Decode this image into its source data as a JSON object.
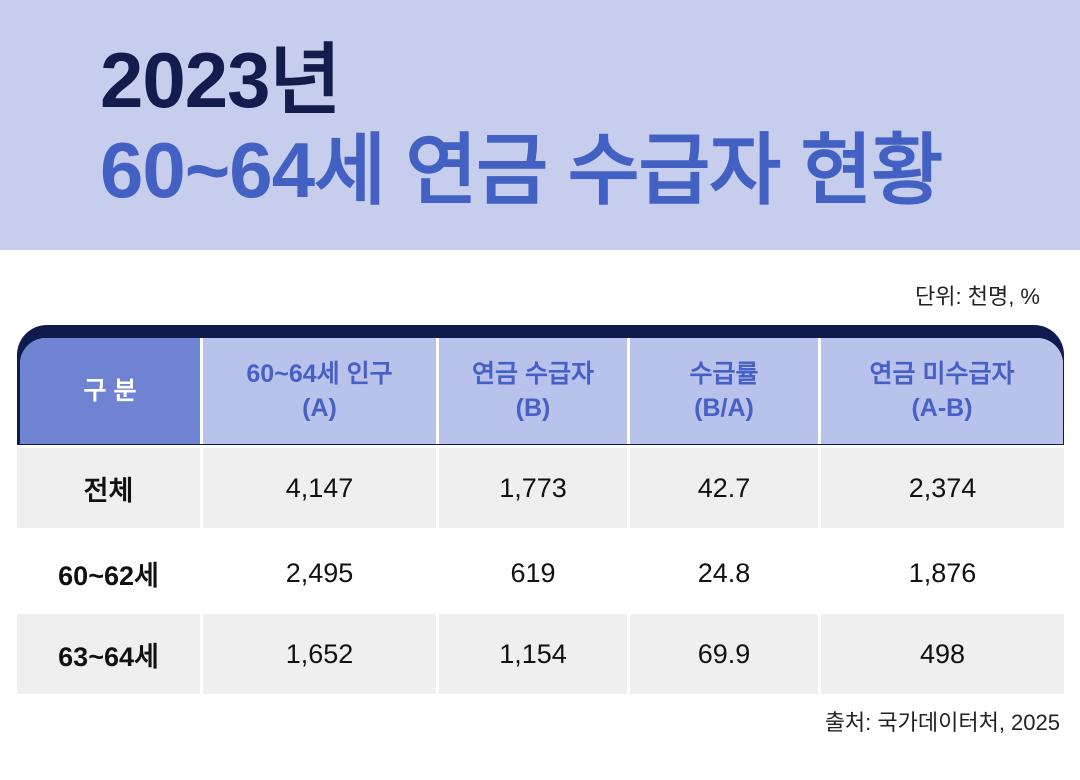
{
  "title": {
    "line1": "2023년",
    "line2": "60~64세 연금 수급자 현황"
  },
  "unit_note": "단위: 천명, %",
  "table": {
    "headers": [
      {
        "line1": "구 분",
        "line2": ""
      },
      {
        "line1": "60~64세 인구",
        "line2": "(A)"
      },
      {
        "line1": "연금 수급자",
        "line2": "(B)"
      },
      {
        "line1": "수급률",
        "line2": "(B/A)"
      },
      {
        "line1": "연금 미수급자",
        "line2": "(A-B)"
      }
    ],
    "rows": [
      {
        "label": "전체",
        "values": [
          "4,147",
          "1,773",
          "42.7",
          "2,374"
        ]
      },
      {
        "label": "60~62세",
        "values": [
          "2,495",
          "619",
          "24.8",
          "1,876"
        ]
      },
      {
        "label": "63~64세",
        "values": [
          "1,652",
          "1,154",
          "69.9",
          "498"
        ]
      }
    ]
  },
  "source": "출처: 국가데이터처, 2025",
  "colors": {
    "banner_bg": "#c7ceed",
    "title_dark": "#141b4d",
    "title_accent": "#4361c2",
    "header_first_bg": "#6f83d3",
    "header_bg": "#b9c2ea",
    "header_text": "#4660c6",
    "table_border": "#0f1a4f",
    "row_shade": "#efefef"
  }
}
